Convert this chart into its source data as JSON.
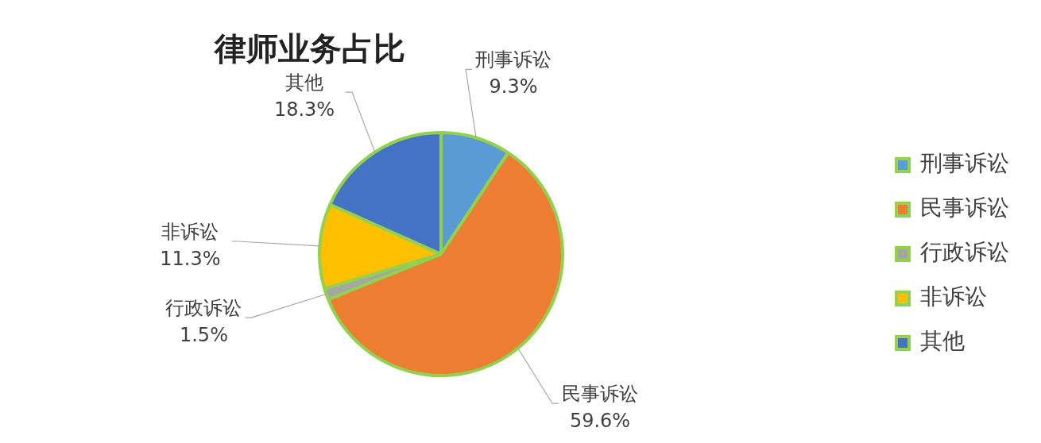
{
  "chart_data": {
    "type": "pie",
    "title": "律师业务占比",
    "categories": [
      "刑事诉讼",
      "民事诉讼",
      "行政诉讼",
      "非诉讼",
      "其他"
    ],
    "values": [
      9.3,
      59.6,
      1.5,
      11.3,
      18.3
    ],
    "value_labels": [
      "9.3%",
      "59.6%",
      "1.5%",
      "11.3%",
      "18.3%"
    ],
    "colors": [
      "#5b9bd5",
      "#ed7d31",
      "#a5a5a5",
      "#ffc000",
      "#4472c4"
    ],
    "legend": "right"
  }
}
